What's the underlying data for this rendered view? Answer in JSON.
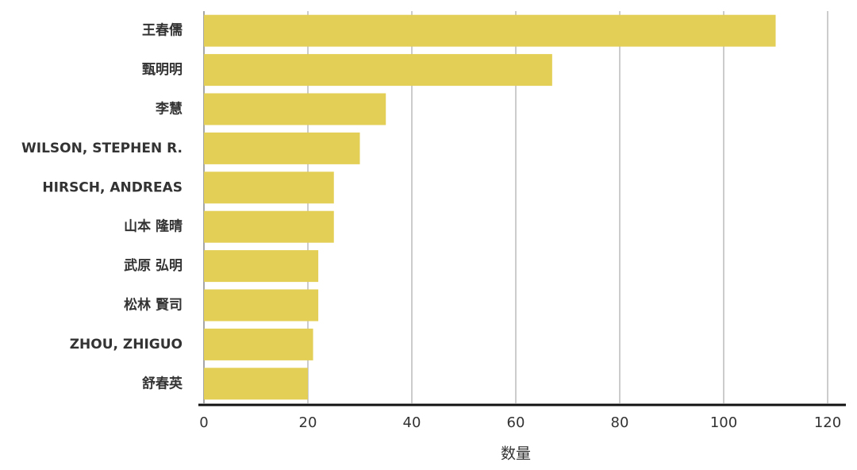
{
  "chart_data": {
    "type": "barh",
    "x_label": "数量",
    "categories": [
      "王春儒",
      "甄明明",
      "李慧",
      "WILSON, STEPHEN R.",
      "HIRSCH, ANDREAS",
      "山本 隆晴",
      "武原 弘明",
      "松林 賢司",
      "ZHOU, ZHIGUO",
      "舒春英"
    ],
    "values": [
      110,
      67,
      35,
      30,
      25,
      25,
      22,
      22,
      21,
      20
    ],
    "color": "#e3cf55",
    "xlim": [
      0,
      120
    ],
    "xticks": [
      0,
      20,
      40,
      60,
      80,
      100,
      120
    ],
    "grid": true
  }
}
